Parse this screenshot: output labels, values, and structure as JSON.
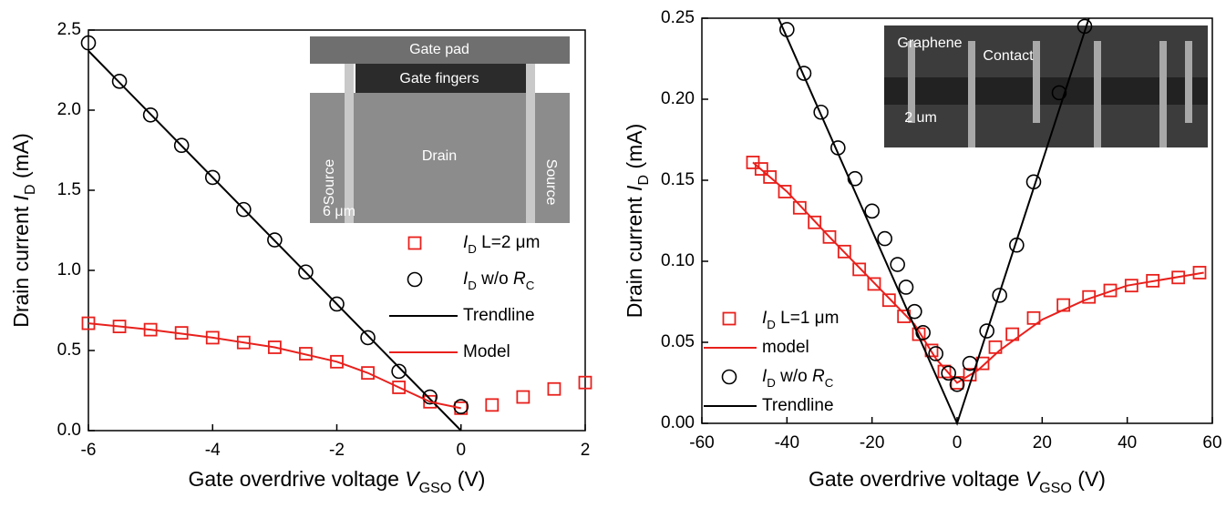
{
  "chart_data": [
    {
      "type": "scatter-line",
      "xlabel": [
        {
          "text": "Gate overdrive voltage "
        },
        {
          "text": "V",
          "style": "italic"
        },
        {
          "text": "GSO",
          "style": "sub"
        },
        {
          "text": " (V)"
        }
      ],
      "ylabel": [
        {
          "text": "Drain current "
        },
        {
          "text": "I",
          "style": "italic"
        },
        {
          "text": "D",
          "style": "sub"
        },
        {
          "text": " (mA)"
        }
      ],
      "xlim": [
        -6,
        2
      ],
      "ylim": [
        0,
        2.5
      ],
      "xticks": [
        -6,
        -4,
        -2,
        0,
        2
      ],
      "yticks": [
        {
          "value": 0,
          "label": "0.0"
        },
        0.5,
        {
          "value": 1,
          "label": "1.0"
        },
        1.5,
        {
          "value": 2,
          "label": "2.0"
        },
        2.5
      ],
      "series": [
        {
          "name": [
            {
              "text": "I",
              "style": "italic"
            },
            {
              "text": "D",
              "style": "sub"
            },
            {
              "text": " L=2 μm"
            }
          ],
          "color": "#e8201c",
          "marker": "square",
          "x": [
            -6,
            -5.5,
            -5,
            -4.5,
            -4,
            -3.5,
            -3,
            -2.5,
            -2,
            -1.5,
            -1,
            -0.5,
            0,
            0.5,
            1,
            1.5,
            2
          ],
          "values": [
            0.67,
            0.65,
            0.63,
            0.61,
            0.58,
            0.55,
            0.52,
            0.48,
            0.43,
            0.36,
            0.27,
            0.18,
            0.14,
            0.16,
            0.21,
            0.26,
            0.3
          ]
        },
        {
          "name": [
            {
              "text": "I",
              "style": "italic"
            },
            {
              "text": "D",
              "style": "sub"
            },
            {
              "text": " w/o "
            },
            {
              "text": "R",
              "style": "italic"
            },
            {
              "text": "C",
              "style": "sub"
            }
          ],
          "color": "#000000",
          "marker": "circle",
          "x": [
            -6,
            -5.5,
            -5,
            -4.5,
            -4,
            -3.5,
            -3,
            -2.5,
            -2,
            -1.5,
            -1,
            -0.5,
            0
          ],
          "values": [
            2.42,
            2.18,
            1.97,
            1.78,
            1.58,
            1.38,
            1.19,
            0.99,
            0.79,
            0.58,
            0.37,
            0.21,
            0.15
          ]
        },
        {
          "name": [
            {
              "text": "Trendline"
            }
          ],
          "color": "#000000",
          "marker": "line",
          "x": [
            -6,
            0
          ],
          "values": [
            2.37,
            0
          ]
        },
        {
          "name": [
            {
              "text": "Model"
            }
          ],
          "color": "#e8201c",
          "marker": "line",
          "x": [
            -6,
            -5,
            -4,
            -3,
            -2,
            -1.5,
            -1,
            -0.5,
            0
          ],
          "values": [
            0.67,
            0.63,
            0.58,
            0.52,
            0.43,
            0.36,
            0.27,
            0.18,
            0.14
          ]
        }
      ],
      "annotations": [
        "Gate pad",
        "Gate fingers",
        "Source",
        "Drain",
        "Source",
        "6 μm"
      ]
    },
    {
      "type": "scatter-line",
      "xlabel": [
        {
          "text": "Gate overdrive voltage "
        },
        {
          "text": "V",
          "style": "italic"
        },
        {
          "text": "GSO",
          "style": "sub"
        },
        {
          "text": " (V)"
        }
      ],
      "ylabel": [
        {
          "text": "Drain current "
        },
        {
          "text": "I",
          "style": "italic"
        },
        {
          "text": "D",
          "style": "sub"
        },
        {
          "text": " (mA)"
        }
      ],
      "xlim": [
        -60,
        60
      ],
      "ylim": [
        0,
        0.25
      ],
      "xticks": [
        -60,
        -40,
        -20,
        0,
        20,
        40,
        60
      ],
      "yticks": [
        {
          "value": 0,
          "label": "0.00"
        },
        0.05,
        {
          "value": 0.1,
          "label": "0.10"
        },
        0.15,
        {
          "value": 0.2,
          "label": "0.20"
        },
        0.25
      ],
      "series": [
        {
          "name": [
            {
              "text": "I",
              "style": "italic"
            },
            {
              "text": "D",
              "style": "sub"
            },
            {
              "text": " L=1 μm"
            }
          ],
          "color": "#e8201c",
          "marker": "square",
          "x": [
            -48,
            -46,
            -44,
            -40.5,
            -37,
            -33.5,
            -30,
            -26.5,
            -23,
            -19.5,
            -16,
            -12.5,
            -9,
            -6,
            -3,
            0,
            3,
            6,
            9,
            13,
            18,
            25,
            31,
            36,
            41,
            46,
            52,
            57
          ],
          "values": [
            0.161,
            0.157,
            0.152,
            0.143,
            0.133,
            0.124,
            0.115,
            0.106,
            0.095,
            0.086,
            0.076,
            0.066,
            0.055,
            0.045,
            0.032,
            0.025,
            0.03,
            0.037,
            0.047,
            0.055,
            0.065,
            0.073,
            0.078,
            0.082,
            0.085,
            0.088,
            0.09,
            0.093
          ]
        },
        {
          "name": [
            {
              "text": "model"
            }
          ],
          "color": "#e8201c",
          "marker": "line",
          "x": [
            -48,
            -40,
            -30,
            -20,
            -10,
            -5,
            0,
            5,
            10,
            20,
            30,
            40,
            58
          ],
          "values": [
            0.161,
            0.143,
            0.115,
            0.088,
            0.061,
            0.04,
            0.025,
            0.033,
            0.045,
            0.064,
            0.076,
            0.085,
            0.093
          ]
        },
        {
          "name": [
            {
              "text": "I",
              "style": "italic"
            },
            {
              "text": "D",
              "style": "sub"
            },
            {
              "text": " w/o "
            },
            {
              "text": "R",
              "style": "italic"
            },
            {
              "text": "C",
              "style": "sub"
            }
          ],
          "color": "#000000",
          "marker": "circle",
          "x": [
            -40,
            -36,
            -32,
            -28,
            -24,
            -20,
            -17,
            -14,
            -12,
            -10,
            -8,
            -5,
            -2,
            0,
            3,
            7,
            10,
            14,
            18,
            24,
            30
          ],
          "values": [
            0.243,
            0.216,
            0.192,
            0.17,
            0.151,
            0.131,
            0.114,
            0.098,
            0.084,
            0.069,
            0.056,
            0.043,
            0.031,
            0.024,
            0.037,
            0.057,
            0.079,
            0.11,
            0.149,
            0.204,
            0.245
          ]
        },
        {
          "name": [
            {
              "text": "Trendline"
            }
          ],
          "color": "#000000",
          "marker": "line",
          "x": [
            -42,
            0,
            31
          ],
          "values": [
            0.25,
            0,
            0.25
          ]
        }
      ],
      "annotations": [
        "Graphene",
        "Contact",
        "2 um"
      ]
    }
  ]
}
